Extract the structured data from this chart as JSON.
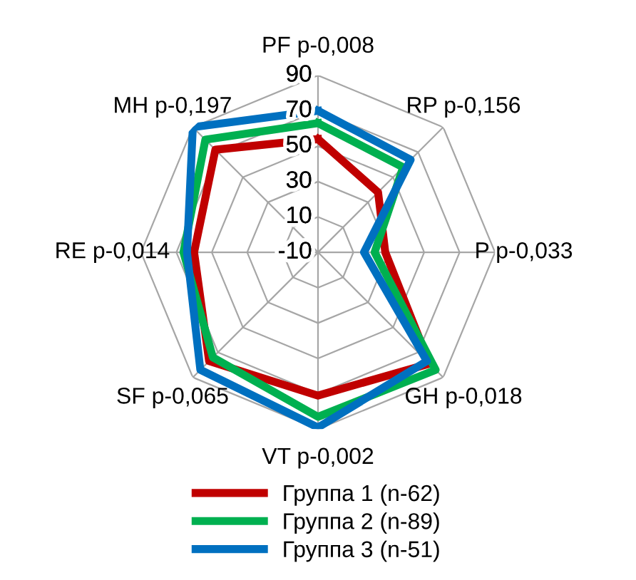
{
  "chart_data": {
    "type": "radar",
    "categories": [
      "PF p-0,008",
      "RP p-0,156",
      "P p-0,033",
      "GH p-0,018",
      "VT p-0,002",
      "SF p-0,065",
      "RE p-0,014",
      "MH p-0,197"
    ],
    "series": [
      {
        "name": "Группа 1 (n-62)",
        "color": "#c00000",
        "values": [
          54,
          38,
          28,
          79,
          71,
          77,
          60,
          72
        ]
      },
      {
        "name": "Группа 2 (n-89)",
        "color": "#00b050",
        "values": [
          63,
          58,
          22,
          84,
          83,
          74,
          66,
          80
        ]
      },
      {
        "name": "Группа 3 (n-51)",
        "color": "#0070c0",
        "values": [
          70,
          64,
          16,
          77,
          89,
          84,
          64,
          90
        ]
      }
    ],
    "ylim": [
      -10,
      90
    ],
    "yticks": [
      -10,
      10,
      30,
      50,
      70,
      90
    ],
    "grid": true,
    "legend": "bottom",
    "line_style": "solid",
    "marker": "none"
  }
}
